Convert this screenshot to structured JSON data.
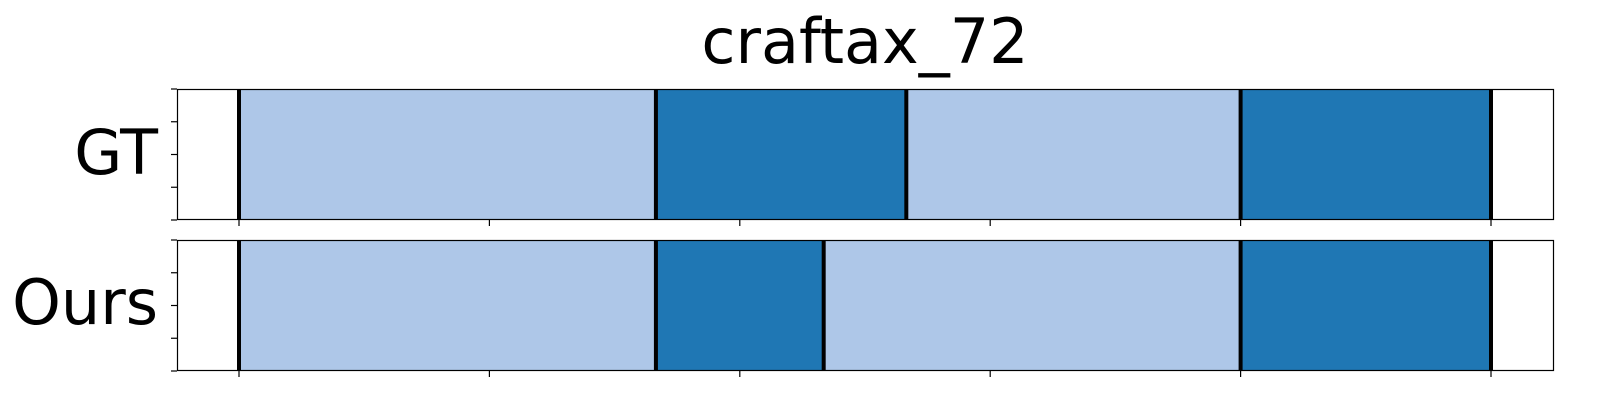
{
  "chart_data": {
    "type": "timeline-segments",
    "title": "craftax_72",
    "xlim": [
      0,
      105
    ],
    "x_ticks": [
      5,
      25,
      45,
      65,
      85,
      105
    ],
    "colors": {
      "light": "#aec7e8",
      "dark": "#1f77b4",
      "boundary": "#000000"
    },
    "rows": [
      {
        "label": "GT",
        "boundaries": [
          5,
          38.3,
          58.3,
          85,
          105
        ],
        "segments": [
          {
            "start": 5,
            "end": 38.3,
            "color": "light"
          },
          {
            "start": 38.3,
            "end": 58.3,
            "color": "dark"
          },
          {
            "start": 58.3,
            "end": 85,
            "color": "light"
          },
          {
            "start": 85,
            "end": 105,
            "color": "dark"
          }
        ]
      },
      {
        "label": "Ours",
        "boundaries": [
          5,
          38.3,
          51.7,
          85,
          105
        ],
        "segments": [
          {
            "start": 5,
            "end": 38.3,
            "color": "light"
          },
          {
            "start": 38.3,
            "end": 51.7,
            "color": "dark"
          },
          {
            "start": 51.7,
            "end": 85,
            "color": "light"
          },
          {
            "start": 85,
            "end": 105,
            "color": "dark"
          }
        ]
      }
    ]
  }
}
